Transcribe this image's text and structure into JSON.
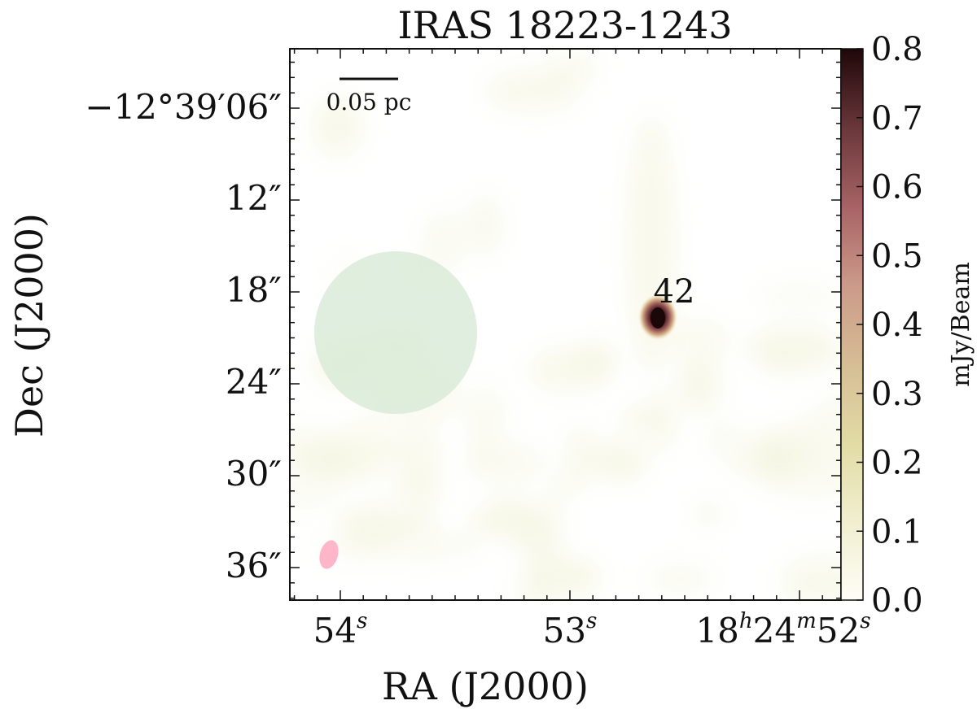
{
  "chart_data": {
    "type": "heatmap",
    "title": "IRAS 18223-1243",
    "xlabel": "RA (J2000)",
    "ylabel": "Dec (J2000)",
    "x_ticks": [
      {
        "text": "54",
        "sup": "s"
      },
      {
        "text": "53",
        "sup": "s"
      },
      {
        "text": "18",
        "sup": "h",
        "text2": "24",
        "sup2": "m",
        "text3": "52",
        "sup3": "s"
      }
    ],
    "y_ticks": [
      "−12°39′06″",
      "12″",
      "18″",
      "24″",
      "30″",
      "36″"
    ],
    "colorbar": {
      "label": "mJy/Beam",
      "ticks": [
        "0.0",
        "0.1",
        "0.2",
        "0.3",
        "0.4",
        "0.5",
        "0.6",
        "0.7",
        "0.8"
      ],
      "range": [
        0.0,
        0.8
      ],
      "colormap": [
        "#fffdf6",
        "#f0eecb",
        "#e0d8a1",
        "#d2b893",
        "#c88d86",
        "#a86364",
        "#70393c",
        "#2a0d10"
      ]
    },
    "sources": [
      {
        "label": "42",
        "peak_mJy_per_beam": 0.8
      }
    ],
    "scale_bar": {
      "label": "0.05 pc"
    },
    "colors": {
      "background_emission": "#ecedc7",
      "circle_region": "#d5e8d4",
      "beam": "#ffb6c8",
      "source_peak": "#2a0d10"
    },
    "grid": false
  }
}
